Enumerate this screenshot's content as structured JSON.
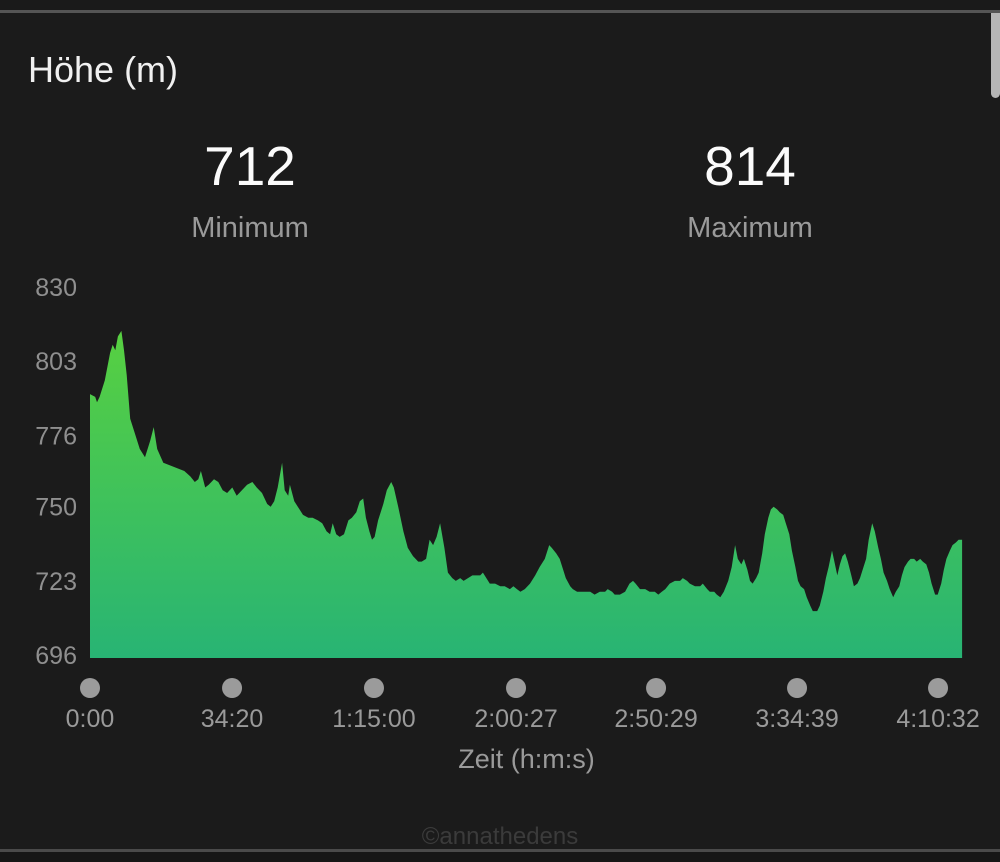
{
  "header": {
    "title": "Höhe (m)"
  },
  "stats": {
    "min": {
      "value": "712",
      "label": "Minimum"
    },
    "max": {
      "value": "814",
      "label": "Maximum"
    }
  },
  "watermark": "©annathedens",
  "colors": {
    "background": "#1b1b1b",
    "area_top": "#5ed43a",
    "area_bottom": "#28b474",
    "axis_text": "#8f8f8f",
    "tick_dot": "#9b9b9b",
    "value_text": "#fbfbfb",
    "label_text": "#9a9a9a",
    "title_text": "#f0f0f0",
    "watermark_text": "#3b3b3b",
    "separator": "#4f4f4f",
    "scrollbar": "#b5b5b5"
  },
  "chart_data": {
    "type": "area",
    "title": "Höhe (m)",
    "xlabel": "Zeit (h:m:s)",
    "ylabel": "",
    "ylim": [
      696,
      830
    ],
    "y_ticks": [
      830,
      803,
      776,
      750,
      723,
      696
    ],
    "grid": false,
    "legend": false,
    "min_stat": 712,
    "max_stat": 814,
    "x_ticks": [
      {
        "pos": 0.0,
        "label": "0:00"
      },
      {
        "pos": 0.1627,
        "label": "34:20"
      },
      {
        "pos": 0.3253,
        "label": "1:15:00"
      },
      {
        "pos": 0.488,
        "label": "2:00:27"
      },
      {
        "pos": 0.6484,
        "label": "2:50:29"
      },
      {
        "pos": 0.8099,
        "label": "3:34:39"
      },
      {
        "pos": 0.9714,
        "label": "4:10:32"
      }
    ],
    "profile": [
      [
        0.0,
        791
      ],
      [
        0.006,
        790
      ],
      [
        0.008,
        788
      ],
      [
        0.011,
        790
      ],
      [
        0.017,
        796
      ],
      [
        0.023,
        806
      ],
      [
        0.026,
        809
      ],
      [
        0.029,
        807
      ],
      [
        0.032,
        812
      ],
      [
        0.036,
        814
      ],
      [
        0.039,
        807
      ],
      [
        0.042,
        798
      ],
      [
        0.046,
        782
      ],
      [
        0.05,
        778
      ],
      [
        0.057,
        771
      ],
      [
        0.063,
        768
      ],
      [
        0.069,
        774
      ],
      [
        0.073,
        779
      ],
      [
        0.077,
        771
      ],
      [
        0.084,
        766
      ],
      [
        0.092,
        765
      ],
      [
        0.1,
        764
      ],
      [
        0.108,
        763
      ],
      [
        0.115,
        761
      ],
      [
        0.12,
        759
      ],
      [
        0.124,
        760
      ],
      [
        0.127,
        763
      ],
      [
        0.132,
        757
      ],
      [
        0.136,
        758
      ],
      [
        0.142,
        760
      ],
      [
        0.147,
        759
      ],
      [
        0.152,
        756
      ],
      [
        0.157,
        755
      ],
      [
        0.163,
        757
      ],
      [
        0.168,
        754
      ],
      [
        0.174,
        756
      ],
      [
        0.18,
        758
      ],
      [
        0.186,
        759
      ],
      [
        0.191,
        757
      ],
      [
        0.197,
        755
      ],
      [
        0.203,
        751
      ],
      [
        0.207,
        750
      ],
      [
        0.211,
        752
      ],
      [
        0.215,
        757
      ],
      [
        0.22,
        766
      ],
      [
        0.223,
        756
      ],
      [
        0.227,
        754
      ],
      [
        0.229,
        758
      ],
      [
        0.234,
        752
      ],
      [
        0.238,
        750
      ],
      [
        0.244,
        747
      ],
      [
        0.25,
        746
      ],
      [
        0.255,
        746
      ],
      [
        0.261,
        745
      ],
      [
        0.266,
        744
      ],
      [
        0.271,
        741
      ],
      [
        0.275,
        740
      ],
      [
        0.278,
        744
      ],
      [
        0.282,
        740
      ],
      [
        0.286,
        739
      ],
      [
        0.291,
        740
      ],
      [
        0.296,
        745
      ],
      [
        0.3,
        746
      ],
      [
        0.305,
        748
      ],
      [
        0.309,
        752
      ],
      [
        0.313,
        753
      ],
      [
        0.316,
        746
      ],
      [
        0.32,
        741
      ],
      [
        0.323,
        738
      ],
      [
        0.326,
        739
      ],
      [
        0.33,
        745
      ],
      [
        0.336,
        751
      ],
      [
        0.34,
        756
      ],
      [
        0.345,
        759
      ],
      [
        0.348,
        757
      ],
      [
        0.353,
        750
      ],
      [
        0.359,
        741
      ],
      [
        0.364,
        735
      ],
      [
        0.37,
        732
      ],
      [
        0.376,
        730
      ],
      [
        0.38,
        730
      ],
      [
        0.385,
        731
      ],
      [
        0.389,
        738
      ],
      [
        0.393,
        736
      ],
      [
        0.397,
        739
      ],
      [
        0.401,
        744
      ],
      [
        0.406,
        735
      ],
      [
        0.41,
        726
      ],
      [
        0.415,
        724
      ],
      [
        0.419,
        723
      ],
      [
        0.424,
        724
      ],
      [
        0.428,
        723
      ],
      [
        0.433,
        724
      ],
      [
        0.438,
        725
      ],
      [
        0.442,
        725
      ],
      [
        0.447,
        725
      ],
      [
        0.45,
        726
      ],
      [
        0.458,
        722
      ],
      [
        0.464,
        722
      ],
      [
        0.47,
        721
      ],
      [
        0.475,
        721
      ],
      [
        0.481,
        720
      ],
      [
        0.485,
        721
      ],
      [
        0.489,
        720
      ],
      [
        0.493,
        719
      ],
      [
        0.498,
        720
      ],
      [
        0.504,
        722
      ],
      [
        0.51,
        725
      ],
      [
        0.515,
        728
      ],
      [
        0.521,
        731
      ],
      [
        0.526,
        736
      ],
      [
        0.529,
        735
      ],
      [
        0.534,
        733
      ],
      [
        0.538,
        731
      ],
      [
        0.542,
        727
      ],
      [
        0.545,
        724
      ],
      [
        0.55,
        721
      ],
      [
        0.553,
        720
      ],
      [
        0.558,
        719
      ],
      [
        0.561,
        719
      ],
      [
        0.567,
        719
      ],
      [
        0.573,
        719
      ],
      [
        0.578,
        718
      ],
      [
        0.584,
        719
      ],
      [
        0.59,
        719
      ],
      [
        0.593,
        720
      ],
      [
        0.598,
        719
      ],
      [
        0.601,
        718
      ],
      [
        0.607,
        718
      ],
      [
        0.613,
        719
      ],
      [
        0.618,
        722
      ],
      [
        0.622,
        723
      ],
      [
        0.625,
        722
      ],
      [
        0.63,
        720
      ],
      [
        0.636,
        720
      ],
      [
        0.641,
        719
      ],
      [
        0.647,
        719
      ],
      [
        0.651,
        718
      ],
      [
        0.655,
        719
      ],
      [
        0.659,
        720
      ],
      [
        0.664,
        722
      ],
      [
        0.67,
        723
      ],
      [
        0.676,
        723
      ],
      [
        0.679,
        724
      ],
      [
        0.684,
        723
      ],
      [
        0.687,
        722
      ],
      [
        0.693,
        721
      ],
      [
        0.699,
        721
      ],
      [
        0.702,
        722
      ],
      [
        0.707,
        720
      ],
      [
        0.71,
        719
      ],
      [
        0.715,
        719
      ],
      [
        0.718,
        718
      ],
      [
        0.722,
        717
      ],
      [
        0.726,
        719
      ],
      [
        0.731,
        723
      ],
      [
        0.735,
        728
      ],
      [
        0.739,
        736
      ],
      [
        0.742,
        731
      ],
      [
        0.746,
        729
      ],
      [
        0.749,
        731
      ],
      [
        0.753,
        727
      ],
      [
        0.756,
        723
      ],
      [
        0.759,
        722
      ],
      [
        0.763,
        724
      ],
      [
        0.766,
        726
      ],
      [
        0.77,
        733
      ],
      [
        0.773,
        740
      ],
      [
        0.777,
        746
      ],
      [
        0.78,
        749
      ],
      [
        0.783,
        750
      ],
      [
        0.787,
        749
      ],
      [
        0.79,
        748
      ],
      [
        0.794,
        747
      ],
      [
        0.797,
        744
      ],
      [
        0.801,
        740
      ],
      [
        0.804,
        734
      ],
      [
        0.808,
        728
      ],
      [
        0.811,
        723
      ],
      [
        0.814,
        721
      ],
      [
        0.818,
        720
      ],
      [
        0.821,
        717
      ],
      [
        0.825,
        714
      ],
      [
        0.828,
        712
      ],
      [
        0.833,
        712
      ],
      [
        0.836,
        714
      ],
      [
        0.84,
        719
      ],
      [
        0.843,
        724
      ],
      [
        0.846,
        728
      ],
      [
        0.85,
        734
      ],
      [
        0.852,
        731
      ],
      [
        0.856,
        725
      ],
      [
        0.859,
        729
      ],
      [
        0.862,
        732
      ],
      [
        0.865,
        733
      ],
      [
        0.868,
        730
      ],
      [
        0.872,
        725
      ],
      [
        0.875,
        721
      ],
      [
        0.879,
        722
      ],
      [
        0.882,
        724
      ],
      [
        0.885,
        727
      ],
      [
        0.889,
        731
      ],
      [
        0.892,
        738
      ],
      [
        0.896,
        744
      ],
      [
        0.899,
        741
      ],
      [
        0.903,
        735
      ],
      [
        0.906,
        731
      ],
      [
        0.909,
        726
      ],
      [
        0.913,
        723
      ],
      [
        0.916,
        720
      ],
      [
        0.92,
        717
      ],
      [
        0.923,
        719
      ],
      [
        0.927,
        721
      ],
      [
        0.93,
        725
      ],
      [
        0.933,
        728
      ],
      [
        0.937,
        730
      ],
      [
        0.94,
        731
      ],
      [
        0.944,
        731
      ],
      [
        0.947,
        730
      ],
      [
        0.951,
        731
      ],
      [
        0.954,
        730
      ],
      [
        0.958,
        729
      ],
      [
        0.961,
        726
      ],
      [
        0.964,
        722
      ],
      [
        0.968,
        718
      ],
      [
        0.971,
        718
      ],
      [
        0.975,
        722
      ],
      [
        0.978,
        727
      ],
      [
        0.981,
        731
      ],
      [
        0.985,
        734
      ],
      [
        0.988,
        736
      ],
      [
        0.992,
        737
      ],
      [
        0.995,
        738
      ],
      [
        0.999,
        738
      ]
    ]
  }
}
